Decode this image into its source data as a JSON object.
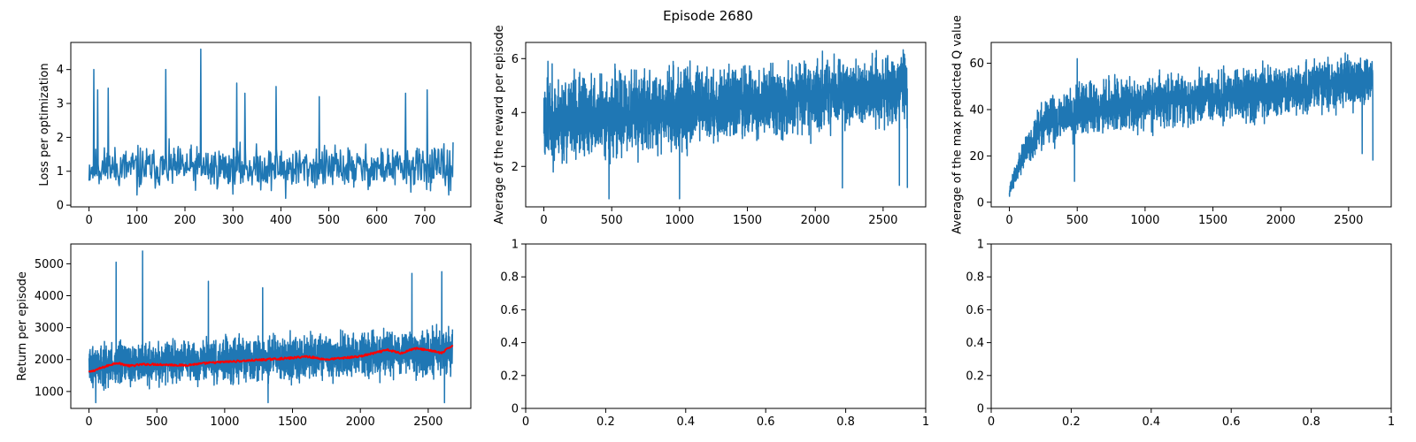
{
  "figure": {
    "suptitle": "Episode 2680"
  },
  "colors": {
    "series_blue": "#1f77b4",
    "moving_avg_red": "#ff0000",
    "axes": "#000000",
    "background": "#ffffff"
  },
  "chart_data": [
    {
      "id": "loss",
      "type": "line",
      "title": "",
      "xlabel": "",
      "ylabel": "Loss per optimization",
      "xlim": [
        -38,
        796
      ],
      "ylim": [
        -0.05,
        4.8
      ],
      "xticks": [
        0,
        100,
        200,
        300,
        400,
        500,
        600,
        700
      ],
      "yticks": [
        0,
        1,
        2,
        3,
        4
      ],
      "n_points": 760,
      "series": [
        {
          "color": "#1f77b4",
          "style": "noisy",
          "baseline_x": [
            0,
            760
          ],
          "baseline_y": [
            1.1,
            1.1
          ],
          "spread": [
            0.8,
            0.8
          ],
          "peaks": [
            [
              10,
              4.0
            ],
            [
              18,
              3.4
            ],
            [
              40,
              3.45
            ],
            [
              160,
              4.0
            ],
            [
              233,
              4.6
            ],
            [
              308,
              3.6
            ],
            [
              325,
              3.3
            ],
            [
              390,
              3.5
            ],
            [
              480,
              3.2
            ],
            [
              660,
              3.3
            ],
            [
              705,
              3.4
            ]
          ],
          "dips": [
            [
              100,
              0.3
            ],
            [
              410,
              0.2
            ],
            [
              750,
              0.3
            ]
          ],
          "seed": 11
        }
      ]
    },
    {
      "id": "avg-reward",
      "type": "line",
      "title": "",
      "xlabel": "",
      "ylabel": "Average of the reward per episode",
      "xlim": [
        -134,
        2814
      ],
      "ylim": [
        0.5,
        6.6
      ],
      "xticks": [
        0,
        500,
        1000,
        1500,
        2000,
        2500
      ],
      "yticks": [
        2,
        4,
        6
      ],
      "n_points": 2680,
      "series": [
        {
          "color": "#1f77b4",
          "style": "noisy",
          "baseline_x": [
            0,
            2680
          ],
          "baseline_y": [
            3.7,
            4.9
          ],
          "spread": [
            2.0,
            1.5
          ],
          "peaks": [
            [
              30,
              5.9
            ],
            [
              2450,
              6.3
            ],
            [
              2650,
              6.2
            ]
          ],
          "dips": [
            [
              480,
              0.8
            ],
            [
              1000,
              0.8
            ],
            [
              2200,
              1.2
            ],
            [
              2620,
              1.3
            ],
            [
              2680,
              1.2
            ]
          ],
          "seed": 23
        }
      ]
    },
    {
      "id": "max-q",
      "type": "line",
      "title": "",
      "xlabel": "",
      "ylabel": "Average of the max predicted Q value",
      "xlim": [
        -134,
        2814
      ],
      "ylim": [
        -2,
        69
      ],
      "xticks": [
        0,
        500,
        1000,
        1500,
        2000,
        2500
      ],
      "yticks": [
        0,
        20,
        40,
        60
      ],
      "n_points": 2680,
      "series": [
        {
          "color": "#1f77b4",
          "style": "growth",
          "baseline_x": [
            0,
            100,
            250,
            500,
            1000,
            1500,
            2000,
            2680
          ],
          "baseline_y": [
            5,
            20,
            33,
            40,
            43,
            45,
            48,
            53
          ],
          "spread": [
            3,
            8,
            12,
            14,
            14,
            14,
            14,
            13
          ],
          "peaks": [
            [
              500,
              62
            ],
            [
              2600,
              66
            ]
          ],
          "dips": [
            [
              480,
              9
            ],
            [
              2600,
              21
            ],
            [
              2680,
              18
            ]
          ],
          "seed": 37
        }
      ]
    },
    {
      "id": "return",
      "type": "line",
      "title": "",
      "xlabel": "",
      "ylabel": "Return per episode",
      "xlim": [
        -134,
        2814
      ],
      "ylim": [
        470,
        5620
      ],
      "xticks": [
        0,
        500,
        1000,
        1500,
        2000,
        2500
      ],
      "yticks": [
        1000,
        2000,
        3000,
        4000,
        5000
      ],
      "n_points": 2680,
      "series": [
        {
          "color": "#1f77b4",
          "style": "noisy",
          "baseline_x": [
            0,
            2680
          ],
          "baseline_y": [
            1800,
            2250
          ],
          "spread": [
            800,
            900
          ],
          "peaks": [
            [
              200,
              5050
            ],
            [
              395,
              5400
            ],
            [
              880,
              4450
            ],
            [
              1280,
              4250
            ],
            [
              1320,
              4000
            ],
            [
              2380,
              4700
            ],
            [
              2600,
              4750
            ]
          ],
          "dips": [
            [
              50,
              650
            ],
            [
              1320,
              650
            ],
            [
              2620,
              650
            ]
          ],
          "seed": 51
        },
        {
          "color": "#ff0000",
          "style": "smooth",
          "knots_x": [
            0,
            100,
            200,
            300,
            400,
            500,
            700,
            900,
            1100,
            1300,
            1500,
            1600,
            1750,
            2000,
            2200,
            2300,
            2400,
            2500,
            2600,
            2680
          ],
          "knots_y": [
            1600,
            1750,
            1900,
            1800,
            1850,
            1850,
            1820,
            1900,
            1950,
            2000,
            2050,
            2100,
            2000,
            2100,
            2300,
            2200,
            2350,
            2300,
            2200,
            2450
          ]
        }
      ]
    },
    {
      "id": "empty-1",
      "type": "line",
      "title": "",
      "xlabel": "",
      "ylabel": "",
      "xlim": [
        0,
        1
      ],
      "ylim": [
        0,
        1
      ],
      "xticks": [
        0,
        0.2,
        0.4,
        0.6,
        0.8,
        1
      ],
      "yticks": [
        0,
        0.2,
        0.4,
        0.6,
        0.8,
        1
      ],
      "series": []
    },
    {
      "id": "empty-2",
      "type": "line",
      "title": "",
      "xlabel": "",
      "ylabel": "",
      "xlim": [
        0,
        1
      ],
      "ylim": [
        0,
        1
      ],
      "xticks": [
        0,
        0.2,
        0.4,
        0.6,
        0.8,
        1
      ],
      "yticks": [
        0,
        0.2,
        0.4,
        0.6,
        0.8,
        1
      ],
      "series": []
    }
  ]
}
